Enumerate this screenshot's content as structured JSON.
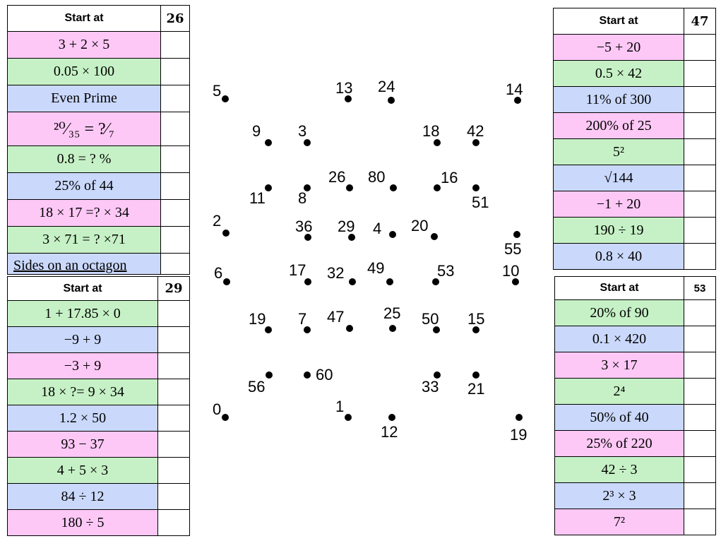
{
  "tables": [
    {
      "id": "t1",
      "header": "Start at",
      "start": "26",
      "rows": [
        {
          "text": "3 + 2 × 5",
          "color": "pink"
        },
        {
          "text": "0.05 × 100",
          "color": "green"
        },
        {
          "text": "Even Prime",
          "color": "blue"
        },
        {
          "text": "²⁰⁄₃₅ = ?⁄₇",
          "color": "pink"
        },
        {
          "text": "0.8 = ? %",
          "color": "green"
        },
        {
          "text": "25% of 44",
          "color": "blue"
        },
        {
          "text": "18 × 17 =? × 34",
          "color": "pink"
        },
        {
          "text": "3 × 71 = ? ×71",
          "color": "green"
        },
        {
          "text": "Sides on an octagon",
          "color": "blue"
        }
      ]
    },
    {
      "id": "t2",
      "header": "Start at",
      "start": "29",
      "rows": [
        {
          "text": "1 + 17.85 × 0",
          "color": "green"
        },
        {
          "text": "−9 + 9",
          "color": "blue"
        },
        {
          "text": "−3 + 9",
          "color": "pink"
        },
        {
          "text": "18 × ?= 9 × 34",
          "color": "green"
        },
        {
          "text": "1.2 × 50",
          "color": "blue"
        },
        {
          "text": "93 − 37",
          "color": "pink"
        },
        {
          "text": "4 + 5 × 3",
          "color": "green"
        },
        {
          "text": "84 ÷ 12",
          "color": "blue"
        },
        {
          "text": "180 ÷ 5",
          "color": "pink"
        }
      ]
    },
    {
      "id": "t3",
      "header": "Start at",
      "start": "47",
      "rows": [
        {
          "text": "−5 + 20",
          "color": "pink"
        },
        {
          "text": "0.5 × 42",
          "color": "green"
        },
        {
          "text": "11% of 300",
          "color": "blue"
        },
        {
          "text": "200% of 25",
          "color": "pink"
        },
        {
          "text": "5²",
          "color": "green"
        },
        {
          "text": "√144",
          "color": "blue"
        },
        {
          "text": "−1 + 20",
          "color": "pink"
        },
        {
          "text": "190  ÷ 19",
          "color": "green"
        },
        {
          "text": "0.8 × 40",
          "color": "blue"
        }
      ]
    },
    {
      "id": "t4",
      "header": "Start at",
      "start": "53",
      "rows": [
        {
          "text": "20% of 90",
          "color": "green"
        },
        {
          "text": "0.1 × 420",
          "color": "blue"
        },
        {
          "text": "3 × 17",
          "color": "pink"
        },
        {
          "text": "2⁴",
          "color": "green"
        },
        {
          "text": "50% of 40",
          "color": "blue"
        },
        {
          "text": "25% of 220",
          "color": "pink"
        },
        {
          "text": "42  ÷ 3",
          "color": "green"
        },
        {
          "text": "2³ × 3",
          "color": "blue"
        },
        {
          "text": "7²",
          "color": "pink"
        }
      ]
    }
  ],
  "colors": {
    "pink": "#fdc8f6",
    "green": "#c6f1c6",
    "blue": "#cad8fb"
  },
  "dots": [
    {
      "label": "5"
    },
    {
      "label": "13"
    },
    {
      "label": "24"
    },
    {
      "label": "14"
    },
    {
      "label": "9"
    },
    {
      "label": "3"
    },
    {
      "label": "18"
    },
    {
      "label": "42"
    },
    {
      "label": "11"
    },
    {
      "label": "8"
    },
    {
      "label": "26"
    },
    {
      "label": "80"
    },
    {
      "label": "16"
    },
    {
      "label": "51"
    },
    {
      "label": "2"
    },
    {
      "label": "36"
    },
    {
      "label": "29"
    },
    {
      "label": "4"
    },
    {
      "label": "20"
    },
    {
      "label": "55"
    },
    {
      "label": "6"
    },
    {
      "label": "17"
    },
    {
      "label": "32"
    },
    {
      "label": "49"
    },
    {
      "label": "53"
    },
    {
      "label": "10"
    },
    {
      "label": "19"
    },
    {
      "label": "7"
    },
    {
      "label": "47"
    },
    {
      "label": "25"
    },
    {
      "label": "50"
    },
    {
      "label": "15"
    },
    {
      "label": "56"
    },
    {
      "label": "60"
    },
    {
      "label": "33"
    },
    {
      "label": "21"
    },
    {
      "label": "0"
    },
    {
      "label": "1"
    },
    {
      "label": "12"
    },
    {
      "label": "19"
    }
  ]
}
